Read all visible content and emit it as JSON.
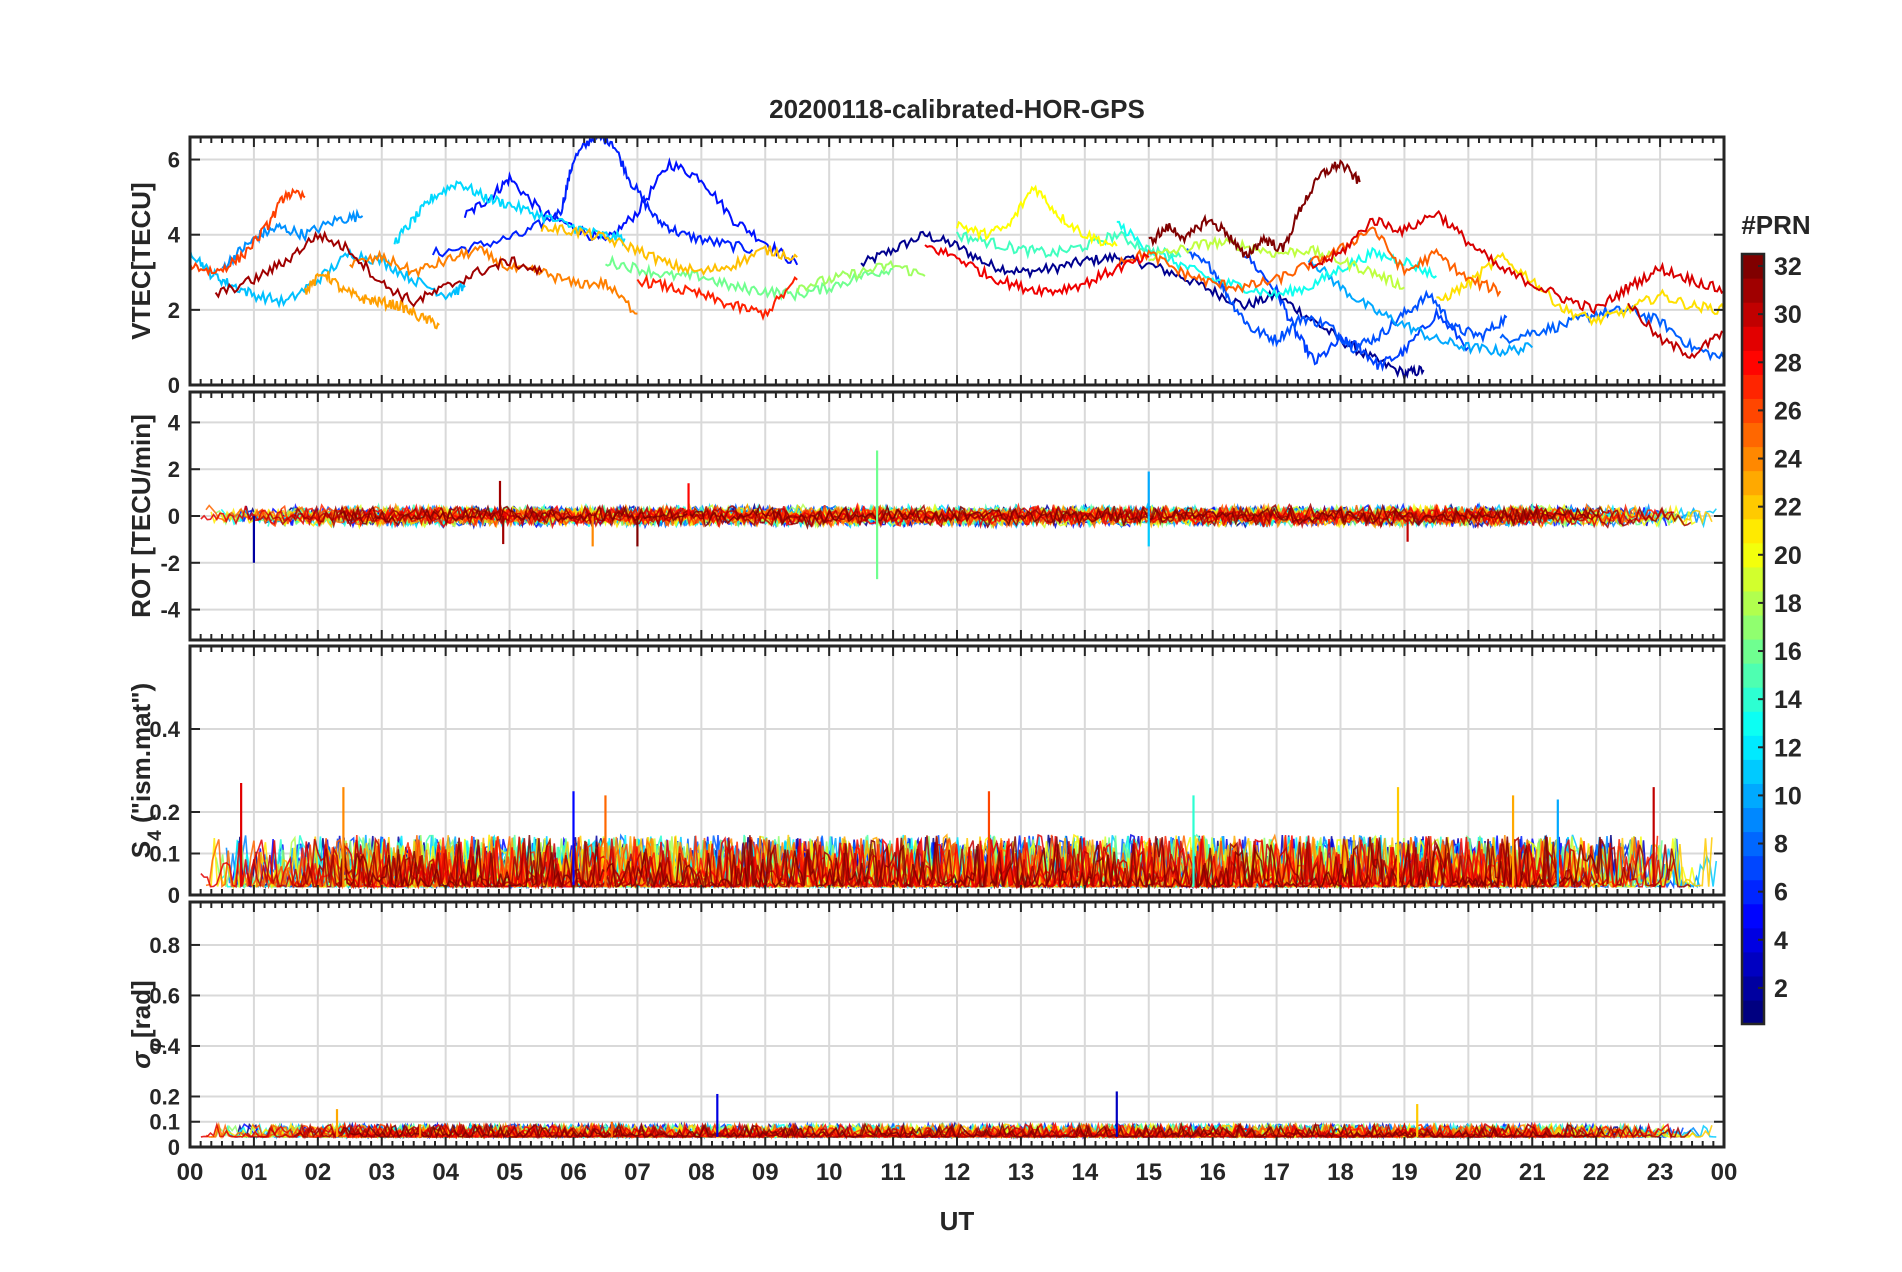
{
  "chart_data": {
    "type": "line",
    "title": "20200118-calibrated-HOR-GPS",
    "xlabel": "UT",
    "x_unit": "hour",
    "xlim": [
      0,
      24
    ],
    "x_ticks": [
      "00",
      "01",
      "02",
      "03",
      "04",
      "05",
      "06",
      "07",
      "08",
      "09",
      "10",
      "11",
      "12",
      "13",
      "14",
      "15",
      "16",
      "17",
      "18",
      "19",
      "20",
      "21",
      "22",
      "23",
      "00"
    ],
    "grid": true,
    "colorbar": {
      "label": "#PRN",
      "placement": "right",
      "colormap": "jet",
      "range": [
        1,
        32
      ],
      "ticks": [
        2,
        4,
        6,
        8,
        10,
        12,
        14,
        16,
        18,
        20,
        22,
        24,
        26,
        28,
        30,
        32
      ]
    },
    "panels": [
      {
        "id": "vtec",
        "ylabel": "VTEC[TECU]",
        "ylim": [
          0,
          6.6
        ],
        "yticks": [
          0,
          2,
          4,
          6
        ],
        "series": [
          {
            "prn": 2,
            "color": "#00008f",
            "x": [
              10.5,
              11,
              11.5,
              12,
              12.5,
              13,
              13.5,
              14,
              14.5,
              15,
              15.5,
              16,
              16.5,
              17,
              17.5,
              18,
              18.5,
              19,
              19.3
            ],
            "y": [
              3.2,
              3.6,
              4.0,
              3.7,
              3.2,
              3.0,
              3.1,
              3.3,
              3.4,
              3.2,
              2.9,
              2.5,
              2.1,
              2.4,
              1.8,
              1.2,
              0.7,
              0.3,
              0.4
            ]
          },
          {
            "prn": 4,
            "color": "#0010ff",
            "x": [
              4.3,
              4.7,
              5.0,
              5.5,
              6.0,
              6.5,
              7.0,
              7.5,
              8.0,
              8.5,
              9.0,
              9.5
            ],
            "y": [
              4.5,
              5.0,
              5.5,
              4.6,
              4.2,
              3.8,
              4.6,
              5.9,
              5.5,
              4.4,
              3.8,
              3.2
            ]
          },
          {
            "prn": 5,
            "color": "#0020ff",
            "x": [
              3.8,
              4.5,
              5.2,
              5.8,
              6.0,
              6.3,
              6.6,
              6.9,
              7.3,
              7.7,
              8.2,
              8.8
            ],
            "y": [
              3.5,
              3.7,
              4.0,
              4.6,
              6.0,
              6.6,
              6.5,
              5.4,
              4.4,
              4.0,
              3.8,
              3.6
            ]
          },
          {
            "prn": 6,
            "color": "#0040ff",
            "x": [
              16.5,
              17,
              17.3,
              17.6,
              18,
              18.3,
              18.6,
              19,
              19.5,
              20
            ],
            "y": [
              3.5,
              2.5,
              1.4,
              0.6,
              1.2,
              1.0,
              0.5,
              0.9,
              1.9,
              1.0
            ]
          },
          {
            "prn": 7,
            "color": "#0050ff",
            "x": [
              15.6,
              16.0,
              16.3,
              16.6,
              17,
              17.4,
              17.8,
              18.2,
              18.6,
              19,
              19.4,
              19.8,
              20.2,
              20.6
            ],
            "y": [
              3.5,
              3.1,
              2.2,
              1.5,
              1.2,
              1.8,
              1.6,
              1.0,
              1.3,
              1.9,
              2.4,
              1.5,
              1.3,
              1.8
            ]
          },
          {
            "prn": 8,
            "color": "#0060ff",
            "x": [
              20.5,
              21,
              21.5,
              22,
              22.5,
              23,
              23.5,
              24
            ],
            "y": [
              1.2,
              1.4,
              1.6,
              1.9,
              2.0,
              1.7,
              1.0,
              0.7
            ]
          },
          {
            "prn": 10,
            "color": "#0090ff",
            "x": [
              0.5,
              0.8,
              1.1,
              1.4,
              1.8,
              2.3,
              2.7
            ],
            "y": [
              3.1,
              3.6,
              4.0,
              4.2,
              4.0,
              4.4,
              4.5
            ]
          },
          {
            "prn": 11,
            "color": "#00a8ff",
            "x": [
              17.5,
              18,
              18.5,
              19,
              19.5,
              20,
              20.5,
              21
            ],
            "y": [
              3.4,
              2.6,
              2.0,
              1.6,
              1.2,
              1.0,
              0.9,
              1.0
            ]
          },
          {
            "prn": 12,
            "color": "#00c0ff",
            "x": [
              0,
              0.3,
              0.6,
              1.0,
              1.5,
              2.0,
              2.5,
              3.0,
              3.5,
              4.0,
              4.3
            ],
            "y": [
              3.6,
              3.0,
              2.7,
              2.4,
              2.2,
              2.8,
              3.5,
              3.3,
              2.8,
              2.4,
              2.6
            ]
          },
          {
            "prn": 13,
            "color": "#00d8ff",
            "x": [
              3.2,
              3.5,
              3.8,
              4.2,
              4.6,
              5.0,
              5.5,
              6.0,
              6.4,
              6.8
            ],
            "y": [
              3.8,
              4.4,
              5.0,
              5.4,
              5.0,
              4.8,
              4.5,
              4.2,
              4.0,
              3.9
            ]
          },
          {
            "prn": 14,
            "color": "#10ffef",
            "x": [
              14.5,
              15,
              15.5,
              16,
              16.5,
              17,
              17.5,
              18,
              18.5,
              19,
              19.5
            ],
            "y": [
              4.3,
              3.6,
              3.2,
              2.8,
              2.6,
              2.4,
              2.6,
              3.1,
              3.5,
              3.3,
              2.9
            ]
          },
          {
            "prn": 15,
            "color": "#40ffbf",
            "x": [
              12,
              12.5,
              13,
              13.5,
              14,
              14.5,
              15,
              15.5
            ],
            "y": [
              4.0,
              3.8,
              3.6,
              3.5,
              3.7,
              4.0,
              3.6,
              3.4
            ]
          },
          {
            "prn": 16,
            "color": "#70ff8f",
            "x": [
              6.5,
              7.0,
              7.5,
              8.0,
              8.5,
              9.0,
              9.5,
              10.0,
              10.5,
              11.0
            ],
            "y": [
              3.3,
              3.1,
              2.9,
              2.9,
              2.6,
              2.5,
              2.4,
              2.6,
              2.9,
              3.1
            ]
          },
          {
            "prn": 17,
            "color": "#9fff60",
            "x": [
              9.5,
              10,
              10.5,
              11,
              11.5
            ],
            "y": [
              2.6,
              2.8,
              3.0,
              3.2,
              2.9
            ]
          },
          {
            "prn": 18,
            "color": "#bfff40",
            "x": [
              15,
              15.5,
              16,
              16.5,
              17,
              17.5,
              18,
              18.5,
              19
            ],
            "y": [
              3.4,
              3.6,
              3.8,
              3.7,
              3.5,
              3.6,
              3.3,
              3.0,
              2.6
            ]
          },
          {
            "prn": 20,
            "color": "#ffff00",
            "x": [
              12,
              12.4,
              12.8,
              13.2,
              13.6,
              14,
              14.5
            ],
            "y": [
              4.3,
              4.0,
              4.2,
              5.3,
              4.5,
              4.0,
              3.7
            ]
          },
          {
            "prn": 21,
            "color": "#ffe000",
            "x": [
              19.5,
              20,
              20.5,
              21,
              21.5,
              22,
              22.5,
              23,
              23.5,
              24
            ],
            "y": [
              2.2,
              2.7,
              3.4,
              2.8,
              2.0,
              1.7,
              2.0,
              2.4,
              2.1,
              2.0
            ]
          },
          {
            "prn": 22,
            "color": "#ffbf00",
            "x": [
              5.5,
              6.0,
              6.5,
              7.0,
              7.5,
              8.0,
              8.5,
              9.0,
              9.5
            ],
            "y": [
              4.2,
              4.1,
              3.9,
              3.6,
              3.2,
              3.0,
              3.2,
              3.6,
              3.4
            ]
          },
          {
            "prn": 23,
            "color": "#ff9f00",
            "x": [
              1.8,
              2.1,
              2.4,
              2.7,
              3.0,
              3.3,
              3.6,
              3.9
            ],
            "y": [
              2.5,
              3.0,
              2.5,
              2.3,
              2.2,
              2.1,
              1.8,
              1.6
            ]
          },
          {
            "prn": 24,
            "color": "#ff8000",
            "x": [
              2.5,
              3.0,
              3.5,
              4.0,
              4.5,
              5.0,
              5.5,
              6.0,
              6.5,
              7.0
            ],
            "y": [
              3.2,
              3.4,
              3.0,
              3.3,
              3.6,
              3.1,
              3.0,
              2.7,
              2.7,
              1.9
            ]
          },
          {
            "prn": 25,
            "color": "#ff6000",
            "x": [
              14.5,
              15,
              15.5,
              16,
              16.5,
              17,
              17.5,
              18,
              18.5,
              19,
              19.5,
              20,
              20.5
            ],
            "y": [
              3.3,
              3.5,
              3.0,
              2.7,
              2.6,
              2.8,
              3.2,
              3.6,
              4.2,
              3.0,
              3.5,
              2.8,
              2.5
            ]
          },
          {
            "prn": 26,
            "color": "#ff4000",
            "x": [
              0,
              0.4,
              0.8,
              1.2,
              1.5,
              1.8
            ],
            "y": [
              3.2,
              3.0,
              3.4,
              4.2,
              5.1,
              5.0
            ]
          },
          {
            "prn": 27,
            "color": "#ff2000",
            "x": [
              7.0,
              7.5,
              8.0,
              8.5,
              9.0,
              9.5
            ],
            "y": [
              2.8,
              2.6,
              2.4,
              2.1,
              1.9,
              2.8
            ]
          },
          {
            "prn": 28,
            "color": "#f00000",
            "x": [
              11.5,
              12.0,
              12.5,
              13.0,
              13.5,
              14.0,
              14.5,
              15.0
            ],
            "y": [
              3.7,
              3.4,
              2.9,
              2.6,
              2.5,
              2.7,
              3.1,
              3.4
            ]
          },
          {
            "prn": 29,
            "color": "#d80000",
            "x": [
              17.5,
              18,
              18.5,
              19,
              19.5,
              20,
              20.5,
              21,
              21.5,
              22,
              22.5,
              23,
              23.5,
              24
            ],
            "y": [
              3.1,
              3.5,
              4.4,
              4.1,
              4.6,
              3.8,
              3.1,
              2.7,
              2.3,
              2.0,
              2.6,
              3.1,
              2.8,
              2.5
            ]
          },
          {
            "prn": 30,
            "color": "#c00000",
            "x": [
              22.5,
              23,
              23.5,
              24
            ],
            "y": [
              2.2,
              1.2,
              0.8,
              1.4
            ]
          },
          {
            "prn": 31,
            "color": "#a00000",
            "x": [
              0.4,
              1.0,
              1.5,
              2.0,
              2.5,
              3.0,
              3.5,
              4.0,
              4.5,
              5.0,
              5.5
            ],
            "y": [
              2.4,
              2.8,
              3.3,
              4.0,
              3.6,
              2.7,
              2.2,
              2.6,
              3.0,
              3.3,
              3.0
            ]
          },
          {
            "prn": 32,
            "color": "#800000",
            "x": [
              15.0,
              15.3,
              15.6,
              15.9,
              16.2,
              16.5,
              16.8,
              17.1,
              17.4,
              17.7,
              18.0,
              18.3
            ],
            "y": [
              3.8,
              4.2,
              3.9,
              4.4,
              4.1,
              3.4,
              3.9,
              3.6,
              4.8,
              5.6,
              5.9,
              5.4
            ]
          }
        ]
      },
      {
        "id": "rot",
        "ylabel": "ROT [TECU/min]",
        "ylim": [
          -5.3,
          5.3
        ],
        "yticks": [
          -4,
          -2,
          0,
          2,
          4
        ],
        "baseline": 0,
        "noise_amplitude": 0.35,
        "spikes": [
          {
            "x": 1.0,
            "y": -2.0,
            "prn": 2
          },
          {
            "x": 4.85,
            "y": 1.5,
            "prn": 31
          },
          {
            "x": 4.9,
            "y": -1.2,
            "prn": 31
          },
          {
            "x": 6.3,
            "y": -1.3,
            "prn": 24
          },
          {
            "x": 7.0,
            "y": -1.3,
            "prn": 32
          },
          {
            "x": 7.8,
            "y": 1.4,
            "prn": 28
          },
          {
            "x": 10.75,
            "y": 2.8,
            "prn": 16
          },
          {
            "x": 10.75,
            "y": -2.7,
            "prn": 16
          },
          {
            "x": 15.0,
            "y": 1.9,
            "prn": 10
          },
          {
            "x": 15.0,
            "y": -1.3,
            "prn": 11
          },
          {
            "x": 19.05,
            "y": -1.1,
            "prn": 30
          }
        ]
      },
      {
        "id": "s4",
        "ylabel": "S4 (\"ism.mat\")",
        "ylabel_base": "S",
        "ylabel_sub": "4",
        "ylabel_rest": " (\"ism.mat\")",
        "ylim": [
          0,
          0.6
        ],
        "yticks": [
          0,
          0.1,
          0.2,
          0.4
        ],
        "baseline": 0.02,
        "noise_amplitude": 0.05,
        "spikes": [
          {
            "x": 0.8,
            "y": 0.27,
            "prn": 29
          },
          {
            "x": 2.4,
            "y": 0.26,
            "prn": 24
          },
          {
            "x": 6.0,
            "y": 0.25,
            "prn": 5
          },
          {
            "x": 6.5,
            "y": 0.24,
            "prn": 25
          },
          {
            "x": 12.5,
            "y": 0.25,
            "prn": 26
          },
          {
            "x": 15.7,
            "y": 0.24,
            "prn": 14
          },
          {
            "x": 18.9,
            "y": 0.26,
            "prn": 22
          },
          {
            "x": 20.7,
            "y": 0.24,
            "prn": 23
          },
          {
            "x": 21.4,
            "y": 0.23,
            "prn": 10
          },
          {
            "x": 22.9,
            "y": 0.26,
            "prn": 30
          }
        ]
      },
      {
        "id": "sigma",
        "ylabel": "σφ[rad]",
        "ylabel_base": "σ",
        "ylabel_sub": "φ",
        "ylabel_rest": "[rad]",
        "ylim": [
          0,
          0.97
        ],
        "yticks": [
          0,
          0.1,
          0.2,
          0.4,
          0.6,
          0.8
        ],
        "baseline": 0.04,
        "noise_amplitude": 0.02,
        "spikes": [
          {
            "x": 2.3,
            "y": 0.15,
            "prn": 23
          },
          {
            "x": 8.25,
            "y": 0.21,
            "prn": 4
          },
          {
            "x": 14.5,
            "y": 0.22,
            "prn": 3
          },
          {
            "x": 19.2,
            "y": 0.17,
            "prn": 22
          },
          {
            "x": 3.6,
            "y": 0.09,
            "prn": 24
          },
          {
            "x": 6.6,
            "y": 0.1,
            "prn": 25
          }
        ]
      }
    ]
  }
}
